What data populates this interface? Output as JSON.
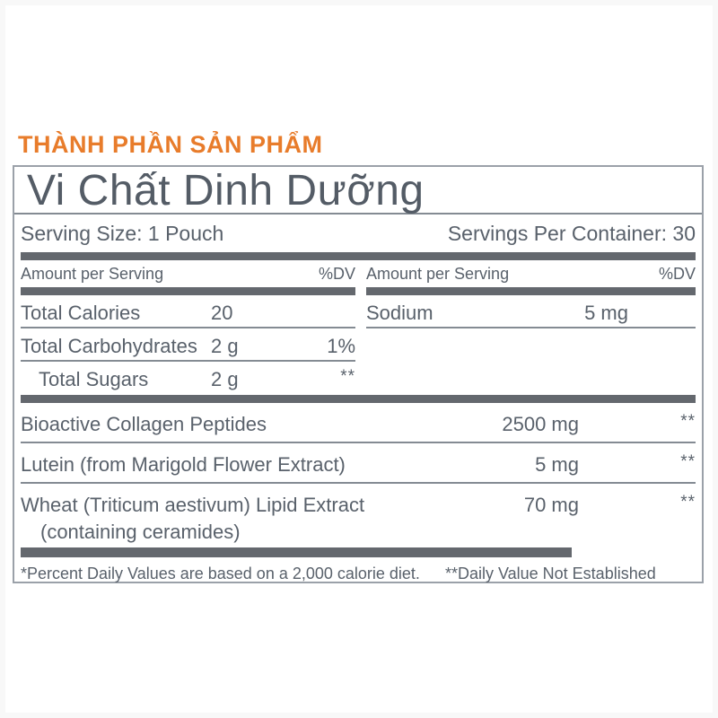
{
  "page": {
    "heading": "THÀNH PHẦN SẢN PHẨM"
  },
  "panel": {
    "title": "Vi Chất Dinh Dưỡng",
    "serving_size": "Serving Size: 1 Pouch",
    "servings_per_container": "Servings Per Container: 30",
    "amount_header": "Amount per Serving",
    "dv_header": "%DV",
    "left_rows": [
      {
        "name": "Total Calories",
        "amount": "20",
        "dv": ""
      },
      {
        "name": "Total Carbohydrates",
        "amount": "2 g",
        "dv": "1%"
      },
      {
        "name": "Total Sugars",
        "amount": "2 g",
        "dv": "**"
      }
    ],
    "right_rows": [
      {
        "name": "Sodium",
        "amount": "5 mg",
        "dv": ""
      }
    ],
    "ingredient_rows": [
      {
        "name": "Bioactive Collagen Peptides",
        "sub": "",
        "amount": "2500 mg",
        "dv": "**"
      },
      {
        "name": "Lutein (from Marigold Flower Extract)",
        "sub": "",
        "amount": "5 mg",
        "dv": "**"
      },
      {
        "name": "Wheat (Triticum aestivum) Lipid Extract",
        "sub": "(containing ceramides)",
        "amount": "70 mg",
        "dv": "**"
      }
    ],
    "footnote_left": "*Percent Daily Values are based on a 2,000 calorie diet.",
    "footnote_right": "**Daily Value Not Established"
  },
  "colors": {
    "accent_orange": "#E87C2B",
    "text_gray": "#59616B",
    "bar_gray": "#64686E",
    "rule_gray": "#848B93",
    "border_gray": "#9BA1A9"
  }
}
